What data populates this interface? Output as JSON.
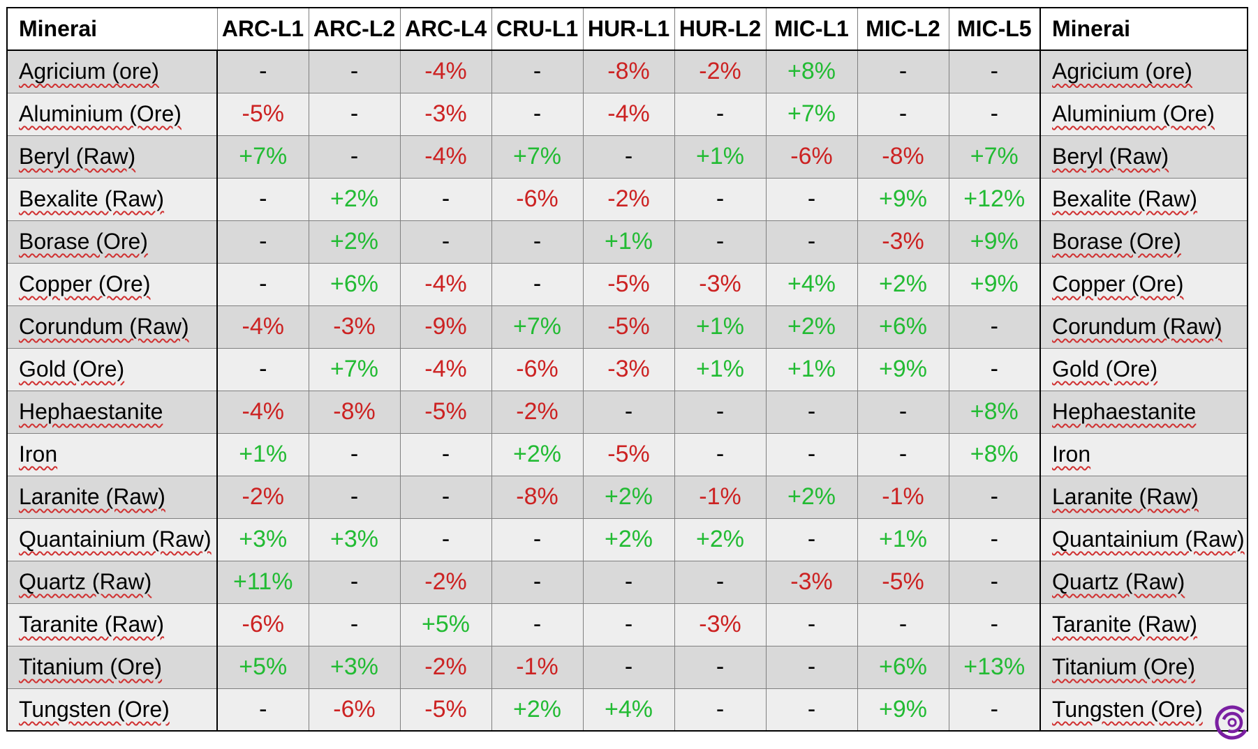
{
  "header": {
    "mineral_left": "Minerai",
    "mineral_right": "Minerai",
    "columns": [
      "ARC-L1",
      "ARC-L2",
      "ARC-L4",
      "CRU-L1",
      "HUR-L1",
      "HUR-L2",
      "MIC-L1",
      "MIC-L2",
      "MIC-L5"
    ]
  },
  "rows": [
    {
      "name": "Agricium (ore)",
      "values": [
        "-",
        "-",
        "-4%",
        "-",
        "-8%",
        "-2%",
        "+8%",
        "-",
        "-"
      ]
    },
    {
      "name": "Aluminium (Ore)",
      "values": [
        "-5%",
        "-",
        "-3%",
        "-",
        "-4%",
        "-",
        "+7%",
        "-",
        "-"
      ]
    },
    {
      "name": "Beryl (Raw)",
      "values": [
        "+7%",
        "-",
        "-4%",
        "+7%",
        "-",
        "+1%",
        "-6%",
        "-8%",
        "+7%"
      ]
    },
    {
      "name": "Bexalite (Raw)",
      "values": [
        "-",
        "+2%",
        "-",
        "-6%",
        "-2%",
        "-",
        "-",
        "+9%",
        "+12%"
      ]
    },
    {
      "name": "Borase (Ore)",
      "values": [
        "-",
        "+2%",
        "-",
        "-",
        "+1%",
        "-",
        "-",
        "-3%",
        "+9%"
      ]
    },
    {
      "name": "Copper (Ore)",
      "values": [
        "-",
        "+6%",
        "-4%",
        "-",
        "-5%",
        "-3%",
        "+4%",
        "+2%",
        "+9%"
      ]
    },
    {
      "name": "Corundum (Raw)",
      "values": [
        "-4%",
        "-3%",
        "-9%",
        "+7%",
        "-5%",
        "+1%",
        "+2%",
        "+6%",
        "-"
      ]
    },
    {
      "name": "Gold (Ore)",
      "values": [
        "-",
        "+7%",
        "-4%",
        "-6%",
        "-3%",
        "+1%",
        "+1%",
        "+9%",
        "-"
      ]
    },
    {
      "name": "Hephaestanite",
      "values": [
        "-4%",
        "-8%",
        "-5%",
        "-2%",
        "-",
        "-",
        "-",
        "-",
        "+8%"
      ]
    },
    {
      "name": "Iron",
      "values": [
        "+1%",
        "-",
        "-",
        "+2%",
        "-5%",
        "-",
        "-",
        "-",
        "+8%"
      ]
    },
    {
      "name": "Laranite (Raw)",
      "values": [
        "-2%",
        "-",
        "-",
        "-8%",
        "+2%",
        "-1%",
        "+2%",
        "-1%",
        "-"
      ]
    },
    {
      "name": "Quantainium (Raw)",
      "values": [
        "+3%",
        "+3%",
        "-",
        "-",
        "+2%",
        "+2%",
        "-",
        "+1%",
        "-"
      ]
    },
    {
      "name": "Quartz (Raw)",
      "values": [
        "+11%",
        "-",
        "-2%",
        "-",
        "-",
        "-",
        "-3%",
        "-5%",
        "-"
      ]
    },
    {
      "name": "Taranite (Raw)",
      "values": [
        "-6%",
        "-",
        "+5%",
        "-",
        "-",
        "-3%",
        "-",
        "-",
        "-"
      ]
    },
    {
      "name": "Titanium (Ore)",
      "values": [
        "+5%",
        "+3%",
        "-2%",
        "-1%",
        "-",
        "-",
        "-",
        "+6%",
        "+13%"
      ]
    },
    {
      "name": "Tungsten (Ore)",
      "values": [
        "-",
        "-6%",
        "-5%",
        "+2%",
        "+4%",
        "-",
        "-",
        "+9%",
        "-"
      ]
    }
  ],
  "colors": {
    "positive": "#22bb33",
    "negative": "#cc2222",
    "row_shade_dark": "#d9d9d9",
    "row_shade_light": "#eeeeee",
    "logo": "#7a1fa2"
  },
  "icons": {
    "logo": "spiral-logo-icon"
  }
}
